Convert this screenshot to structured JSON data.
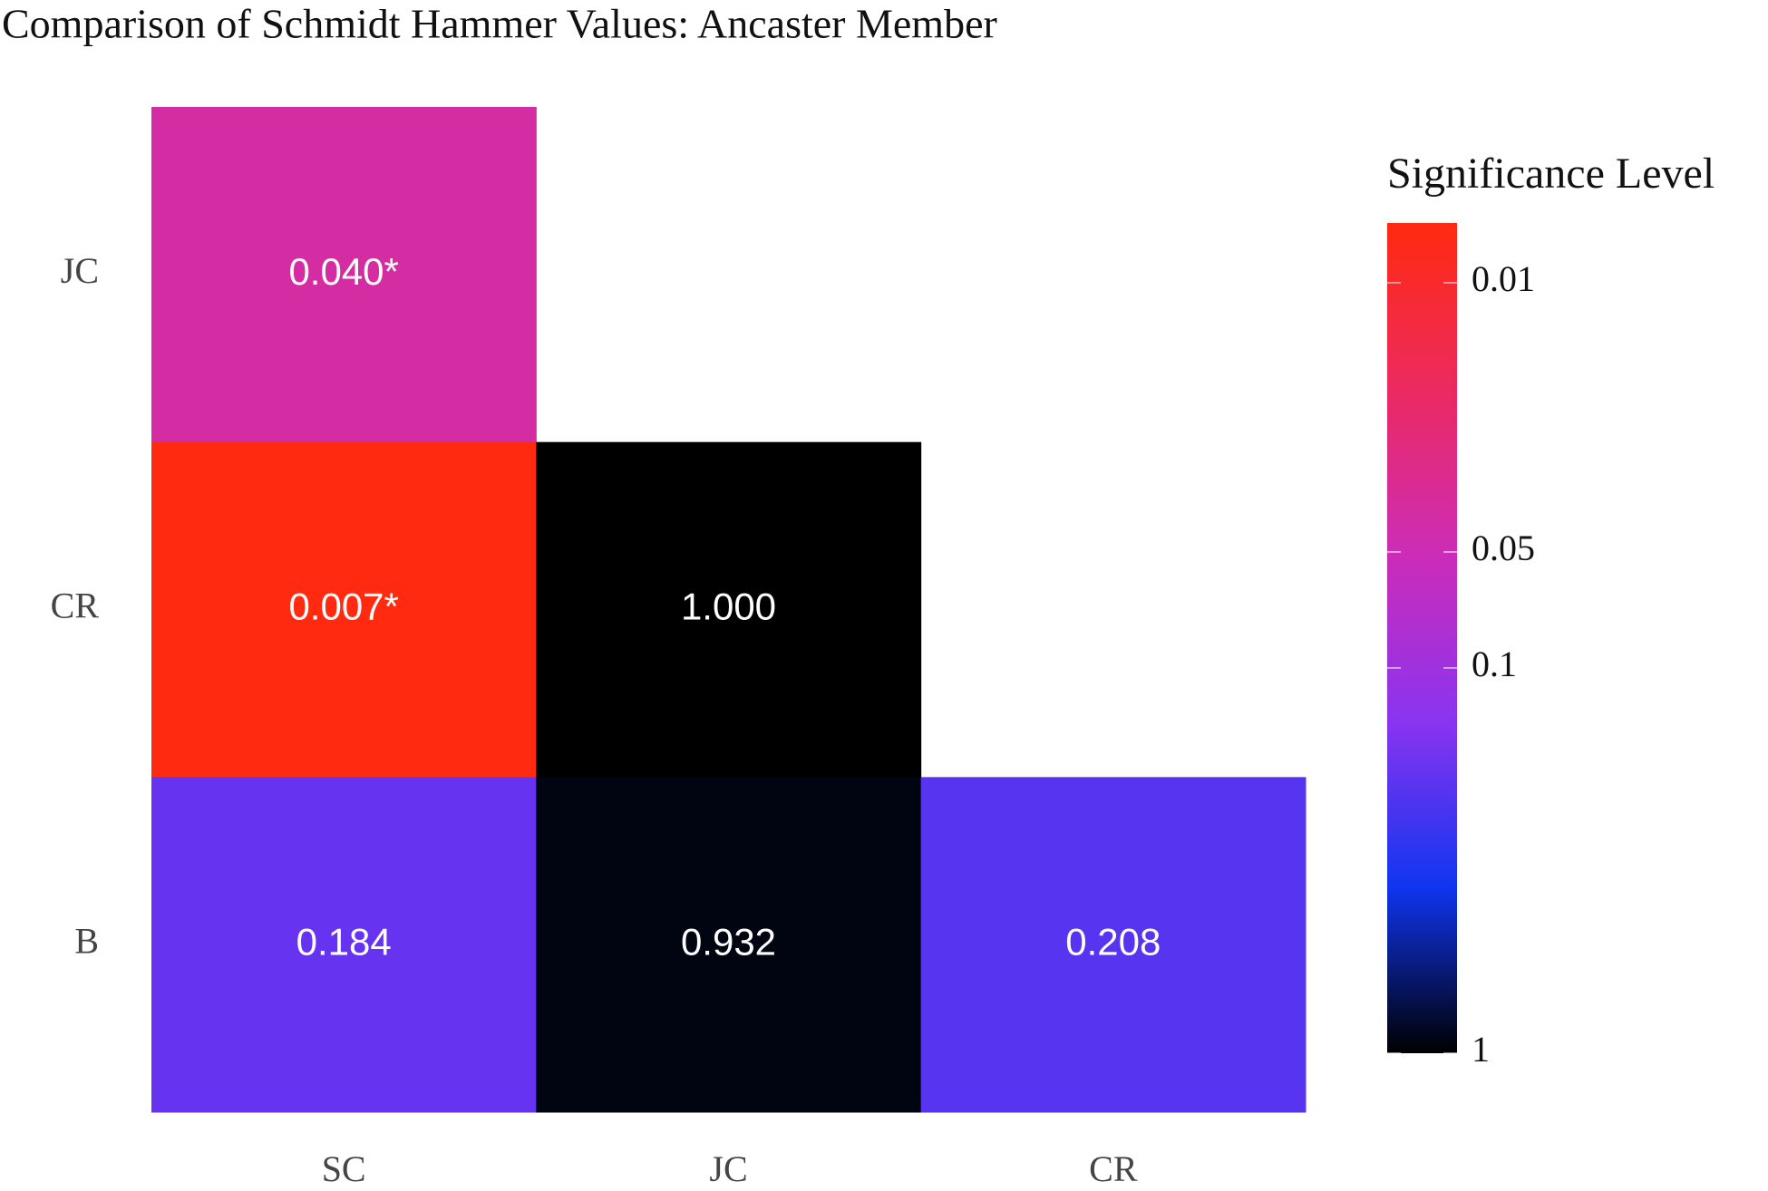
{
  "chart_data": {
    "type": "heatmap",
    "title": "Comparison of Schmidt Hammer Values: Ancaster Member",
    "x_categories": [
      "SC",
      "JC",
      "CR"
    ],
    "y_categories": [
      "JC",
      "CR",
      "B"
    ],
    "values": [
      [
        0.04,
        null,
        null
      ],
      [
        0.007,
        1.0,
        null
      ],
      [
        0.184,
        0.932,
        0.208
      ]
    ],
    "value_labels": [
      [
        "0.040*",
        null,
        null
      ],
      [
        "0.007*",
        "1.000",
        null
      ],
      [
        "0.184",
        "0.932",
        "0.208"
      ]
    ],
    "colorbar": {
      "title": "Significance Level",
      "log": true,
      "reversed": true,
      "lim": [
        0.007,
        1
      ],
      "ticks": [
        0.01,
        0.05,
        0.1,
        1
      ],
      "colors": [
        "#ff2a10",
        "#ec2a60",
        "#cc2cb8",
        "#8a34f0",
        "#1035f0",
        "#000000"
      ]
    }
  }
}
